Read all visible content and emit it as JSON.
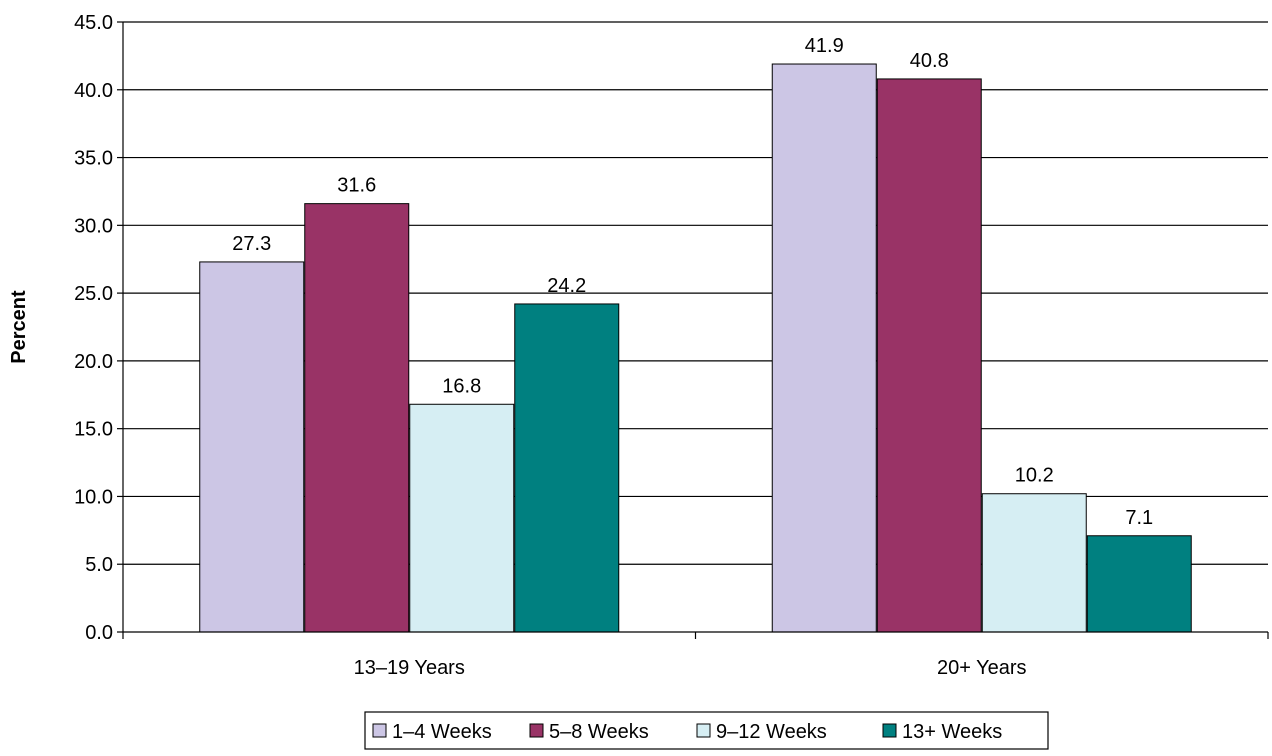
{
  "chart_data": {
    "type": "bar",
    "title": "",
    "xlabel": "",
    "ylabel": "Percent",
    "ylim": [
      0,
      45
    ],
    "y_ticks": [
      "0.0",
      "5.0",
      "10.0",
      "15.0",
      "20.0",
      "25.0",
      "30.0",
      "35.0",
      "40.0",
      "45.0"
    ],
    "y_tick_step": 5,
    "grid": true,
    "legend_position": "bottom",
    "categories": [
      "13–19 Years",
      "20+ Years"
    ],
    "series": [
      {
        "name": "1–4 Weeks",
        "color": "#CCC6E5",
        "values": [
          27.3,
          41.9
        ],
        "labels": [
          "27.3",
          "41.9"
        ]
      },
      {
        "name": "5–8 Weeks",
        "color": "#993366",
        "values": [
          31.6,
          40.8
        ],
        "labels": [
          "31.6",
          "40.8"
        ]
      },
      {
        "name": "9–12 Weeks",
        "color": "#D6EEF3",
        "values": [
          16.8,
          10.2
        ],
        "labels": [
          "16.8",
          "10.2"
        ]
      },
      {
        "name": "13+ Weeks",
        "color": "#008080",
        "values": [
          24.2,
          7.1
        ],
        "labels": [
          "24.2",
          "7.1"
        ]
      }
    ]
  }
}
